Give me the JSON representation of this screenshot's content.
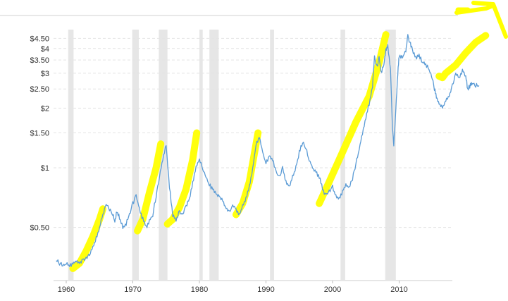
{
  "chart_data": {
    "type": "line",
    "title": "",
    "xlabel": "",
    "ylabel": "",
    "y_scale": "log",
    "ylim": [
      0.3,
      4.8
    ],
    "xlim": [
      1958.5,
      2016.5
    ],
    "y_ticks": [
      {
        "value": 4.5,
        "label": "$4.50"
      },
      {
        "value": 4,
        "label": "$4"
      },
      {
        "value": 3.5,
        "label": "$3.50"
      },
      {
        "value": 3,
        "label": "$3"
      },
      {
        "value": 2.5,
        "label": "$2.50"
      },
      {
        "value": 2,
        "label": "$2"
      },
      {
        "value": 1.5,
        "label": "$1.50"
      },
      {
        "value": 1,
        "label": "$1"
      },
      {
        "value": 0.5,
        "label": "$0.50"
      }
    ],
    "x_ticks": [
      {
        "value": 1960,
        "label": "1960"
      },
      {
        "value": 1970,
        "label": "1970"
      },
      {
        "value": 1980,
        "label": "1980"
      },
      {
        "value": 1990,
        "label": "1990"
      },
      {
        "value": 2000,
        "label": "2000"
      },
      {
        "value": 2010,
        "label": "2010"
      }
    ],
    "recessions": [
      [
        1960.3,
        1961.1
      ],
      [
        1969.9,
        1970.9
      ],
      [
        1973.9,
        1975.2
      ],
      [
        1980.0,
        1980.5
      ],
      [
        1981.5,
        1982.9
      ],
      [
        1990.6,
        1991.2
      ],
      [
        2001.2,
        2001.9
      ],
      [
        2007.9,
        2009.5
      ]
    ],
    "grid": true,
    "series": [
      {
        "color": "#5b9bd5",
        "points": [
          [
            1958.5,
            0.34
          ],
          [
            1959.0,
            0.33
          ],
          [
            1959.5,
            0.32
          ],
          [
            1960.0,
            0.33
          ],
          [
            1960.5,
            0.32
          ],
          [
            1961.0,
            0.33
          ],
          [
            1961.5,
            0.34
          ],
          [
            1962.0,
            0.33
          ],
          [
            1962.5,
            0.34
          ],
          [
            1963.0,
            0.35
          ],
          [
            1963.5,
            0.36
          ],
          [
            1964.0,
            0.4
          ],
          [
            1964.5,
            0.44
          ],
          [
            1965.0,
            0.5
          ],
          [
            1965.5,
            0.58
          ],
          [
            1966.0,
            0.66
          ],
          [
            1966.5,
            0.62
          ],
          [
            1967.0,
            0.58
          ],
          [
            1967.3,
            0.54
          ],
          [
            1967.6,
            0.6
          ],
          [
            1968.0,
            0.56
          ],
          [
            1968.5,
            0.5
          ],
          [
            1969.0,
            0.52
          ],
          [
            1969.5,
            0.58
          ],
          [
            1970.0,
            0.66
          ],
          [
            1970.5,
            0.72
          ],
          [
            1971.0,
            0.62
          ],
          [
            1971.5,
            0.55
          ],
          [
            1972.0,
            0.5
          ],
          [
            1972.5,
            0.54
          ],
          [
            1973.0,
            0.58
          ],
          [
            1973.5,
            0.72
          ],
          [
            1974.0,
            0.9
          ],
          [
            1974.5,
            1.1
          ],
          [
            1975.0,
            1.3
          ],
          [
            1975.5,
            0.8
          ],
          [
            1976.0,
            0.58
          ],
          [
            1976.5,
            0.55
          ],
          [
            1977.0,
            0.6
          ],
          [
            1977.5,
            0.58
          ],
          [
            1978.0,
            0.64
          ],
          [
            1978.5,
            0.7
          ],
          [
            1979.0,
            0.84
          ],
          [
            1979.5,
            1.0
          ],
          [
            1980.0,
            1.1
          ],
          [
            1980.5,
            1.0
          ],
          [
            1981.0,
            0.9
          ],
          [
            1981.5,
            0.82
          ],
          [
            1982.0,
            0.78
          ],
          [
            1982.5,
            0.74
          ],
          [
            1983.0,
            0.72
          ],
          [
            1983.5,
            0.68
          ],
          [
            1984.0,
            0.62
          ],
          [
            1984.5,
            0.6
          ],
          [
            1985.0,
            0.64
          ],
          [
            1985.5,
            0.62
          ],
          [
            1986.0,
            0.58
          ],
          [
            1986.5,
            0.64
          ],
          [
            1987.0,
            0.7
          ],
          [
            1987.5,
            0.8
          ],
          [
            1988.0,
            1.0
          ],
          [
            1988.5,
            1.3
          ],
          [
            1989.0,
            1.45
          ],
          [
            1989.5,
            1.2
          ],
          [
            1990.0,
            1.05
          ],
          [
            1990.5,
            1.15
          ],
          [
            1991.0,
            1.1
          ],
          [
            1991.5,
            0.95
          ],
          [
            1992.0,
            0.9
          ],
          [
            1992.5,
            1.0
          ],
          [
            1993.0,
            0.85
          ],
          [
            1993.5,
            0.8
          ],
          [
            1994.0,
            0.9
          ],
          [
            1994.5,
            1.0
          ],
          [
            1995.0,
            1.2
          ],
          [
            1995.5,
            1.35
          ],
          [
            1996.0,
            1.25
          ],
          [
            1996.5,
            1.1
          ],
          [
            1997.0,
            1.0
          ],
          [
            1997.5,
            0.95
          ],
          [
            1998.0,
            0.9
          ],
          [
            1998.5,
            0.78
          ],
          [
            1999.0,
            0.72
          ],
          [
            1999.5,
            0.76
          ],
          [
            2000.0,
            0.8
          ],
          [
            2000.5,
            0.72
          ],
          [
            2001.0,
            0.7
          ],
          [
            2001.5,
            0.76
          ],
          [
            2002.0,
            0.82
          ],
          [
            2002.5,
            0.8
          ],
          [
            2003.0,
            0.88
          ],
          [
            2003.5,
            1.05
          ],
          [
            2004.0,
            1.25
          ],
          [
            2004.5,
            1.5
          ],
          [
            2005.0,
            1.8
          ],
          [
            2005.5,
            2.1
          ],
          [
            2006.0,
            2.6
          ],
          [
            2006.3,
            3.6
          ],
          [
            2006.7,
            3.2
          ],
          [
            2007.0,
            3.6
          ],
          [
            2007.3,
            3.0
          ],
          [
            2007.7,
            3.3
          ],
          [
            2008.0,
            3.9
          ],
          [
            2008.3,
            4.1
          ],
          [
            2008.7,
            3.2
          ],
          [
            2009.0,
            1.6
          ],
          [
            2009.2,
            1.3
          ],
          [
            2009.5,
            2.0
          ],
          [
            2009.8,
            3.0
          ],
          [
            2010.0,
            3.7
          ],
          [
            2010.5,
            3.6
          ],
          [
            2011.0,
            3.9
          ],
          [
            2011.3,
            4.6
          ],
          [
            2011.7,
            4.2
          ],
          [
            2012.0,
            3.9
          ],
          [
            2012.5,
            3.6
          ],
          [
            2013.0,
            3.7
          ],
          [
            2013.5,
            3.4
          ],
          [
            2014.0,
            3.3
          ],
          [
            2014.5,
            3.2
          ],
          [
            2015.0,
            2.8
          ],
          [
            2015.3,
            2.5
          ],
          [
            2015.6,
            2.3
          ],
          [
            2016.0,
            2.1
          ],
          [
            2016.5,
            2.0
          ],
          [
            2017.0,
            2.2
          ],
          [
            2017.5,
            2.3
          ],
          [
            2018.0,
            2.6
          ],
          [
            2018.5,
            3.0
          ],
          [
            2019.0,
            2.8
          ],
          [
            2019.5,
            3.1
          ],
          [
            2020.0,
            2.9
          ],
          [
            2020.3,
            2.5
          ],
          [
            2020.7,
            2.6
          ],
          [
            2021.0,
            2.7
          ],
          [
            2021.5,
            2.6
          ],
          [
            2022.0,
            2.6
          ]
        ]
      }
    ],
    "highlights": [
      [
        [
          1961.0,
          0.31
        ],
        [
          1962.0,
          0.33
        ],
        [
          1963.0,
          0.38
        ],
        [
          1964.0,
          0.45
        ],
        [
          1965.0,
          0.55
        ],
        [
          1965.5,
          0.62
        ]
      ],
      [
        [
          1970.7,
          0.48
        ],
        [
          1971.5,
          0.55
        ],
        [
          1972.5,
          0.75
        ],
        [
          1973.5,
          1.0
        ],
        [
          1974.2,
          1.32
        ]
      ],
      [
        [
          1975.2,
          0.52
        ],
        [
          1976.0,
          0.55
        ],
        [
          1977.0,
          0.63
        ],
        [
          1978.0,
          0.78
        ],
        [
          1979.0,
          1.1
        ],
        [
          1979.6,
          1.5
        ]
      ],
      [
        [
          1985.5,
          0.58
        ],
        [
          1986.5,
          0.66
        ],
        [
          1987.5,
          0.85
        ],
        [
          1988.3,
          1.2
        ],
        [
          1988.8,
          1.5
        ]
      ],
      [
        [
          1998.0,
          0.66
        ],
        [
          1999.5,
          0.85
        ],
        [
          2001.5,
          1.2
        ],
        [
          2003.5,
          1.7
        ],
        [
          2005.5,
          2.3
        ],
        [
          2007.0,
          3.4
        ],
        [
          2008.0,
          4.7
        ]
      ],
      [
        [
          2016.0,
          2.9
        ],
        [
          2016.5,
          2.85
        ],
        [
          2017.0,
          3.0
        ],
        [
          2018.5,
          3.3
        ],
        [
          2020.0,
          3.8
        ],
        [
          2021.5,
          4.3
        ],
        [
          2023.0,
          4.65
        ]
      ]
    ],
    "arrow": [
      [
        2022.5,
        4.6
      ],
      [
        2024.0,
        4.7
      ],
      [
        2025.5,
        4.8
      ]
    ]
  }
}
